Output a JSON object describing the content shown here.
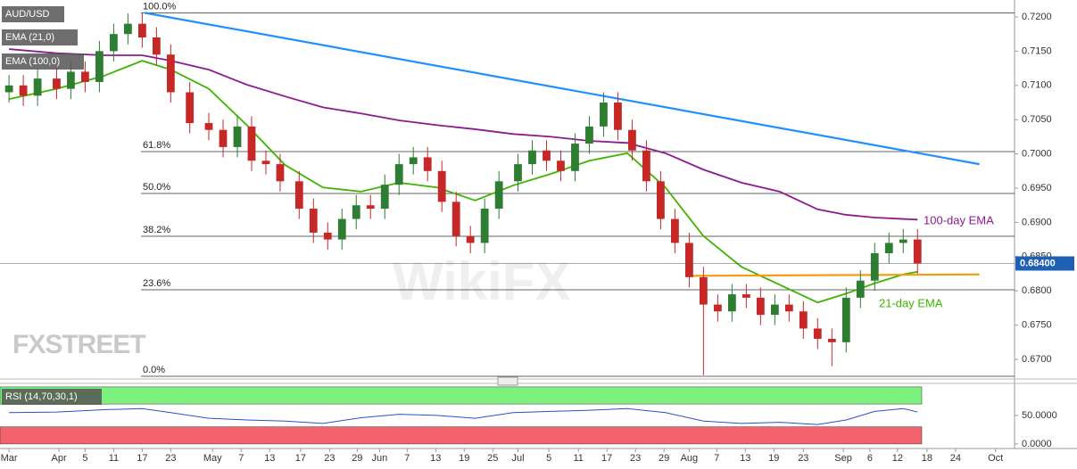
{
  "chart_data": {
    "type": "candlestick",
    "title": "AUD/USD",
    "legend": [
      "EMA (21,0)",
      "EMA (100,0)"
    ],
    "watermarks": [
      "FXSTREET",
      "WikiFX"
    ],
    "xlim": [
      -1.9,
      211.4
    ],
    "xticks": [
      {
        "value": 0,
        "label": "Mar"
      },
      {
        "value": 10.5,
        "label": "Apr"
      },
      {
        "value": 16,
        "label": "5"
      },
      {
        "value": 22,
        "label": "11"
      },
      {
        "value": 28,
        "label": "17"
      },
      {
        "value": 34,
        "label": "23"
      },
      {
        "value": 42.8,
        "label": "May"
      },
      {
        "value": 48.8,
        "label": "7"
      },
      {
        "value": 54.8,
        "label": "13"
      },
      {
        "value": 61.3,
        "label": "17"
      },
      {
        "value": 67.4,
        "label": "23"
      },
      {
        "value": 73.2,
        "label": "29"
      },
      {
        "value": 77.9,
        "label": "Jun"
      },
      {
        "value": 83.7,
        "label": "7"
      },
      {
        "value": 89.7,
        "label": "13"
      },
      {
        "value": 95.7,
        "label": "19"
      },
      {
        "value": 101.7,
        "label": "25"
      },
      {
        "value": 107,
        "label": "Jul"
      },
      {
        "value": 113.5,
        "label": "5"
      },
      {
        "value": 119.7,
        "label": "11"
      },
      {
        "value": 125.7,
        "label": "17"
      },
      {
        "value": 131.7,
        "label": "23"
      },
      {
        "value": 137.7,
        "label": "29"
      },
      {
        "value": 143,
        "label": "Aug"
      },
      {
        "value": 148.8,
        "label": "7"
      },
      {
        "value": 154.8,
        "label": "13"
      },
      {
        "value": 160.8,
        "label": "19"
      },
      {
        "value": 167,
        "label": "23"
      },
      {
        "value": 175.4,
        "label": "Sep"
      },
      {
        "value": 181,
        "label": "6"
      },
      {
        "value": 186.8,
        "label": "12"
      },
      {
        "value": 193,
        "label": "18"
      },
      {
        "value": 199,
        "label": "24"
      },
      {
        "value": 207.4,
        "label": "Oct"
      }
    ],
    "ylim": [
      0.66753,
      0.72247
    ],
    "yticks": [
      {
        "value": 0.67,
        "label": "0.6700"
      },
      {
        "value": 0.675,
        "label": "0.6750"
      },
      {
        "value": 0.68,
        "label": "0.6800"
      },
      {
        "value": 0.685,
        "label": "0.6850"
      },
      {
        "value": 0.69,
        "label": "0.6900"
      },
      {
        "value": 0.695,
        "label": "0.6950"
      },
      {
        "value": 0.7,
        "label": "0.7000"
      },
      {
        "value": 0.705,
        "label": "0.7050"
      },
      {
        "value": 0.71,
        "label": "0.7100"
      },
      {
        "value": 0.715,
        "label": "0.7150"
      },
      {
        "value": 0.72,
        "label": "0.7200"
      }
    ],
    "up_color": "#2e7d32",
    "down_color": "#c62828",
    "candles": {
      "x": [
        0,
        3,
        6,
        10,
        13,
        16,
        19,
        22,
        25,
        28,
        31,
        34,
        38,
        42,
        45,
        48,
        51,
        54,
        57,
        61,
        64,
        67,
        70,
        73,
        76,
        79,
        82,
        85,
        88,
        91,
        94,
        97,
        100,
        103,
        107,
        110,
        113,
        116,
        119,
        122,
        125,
        128,
        131,
        134,
        137,
        140,
        143,
        146,
        149,
        152,
        155,
        158,
        161,
        164,
        167,
        170,
        173,
        176,
        179,
        182,
        185,
        188,
        191
      ],
      "open": [
        0.709,
        0.71,
        0.7085,
        0.711,
        0.7095,
        0.712,
        0.7105,
        0.715,
        0.7175,
        0.719,
        0.717,
        0.7145,
        0.709,
        0.7045,
        0.7035,
        0.701,
        0.704,
        0.699,
        0.6985,
        0.696,
        0.692,
        0.6885,
        0.6875,
        0.6905,
        0.6925,
        0.692,
        0.6955,
        0.6985,
        0.6995,
        0.6975,
        0.693,
        0.688,
        0.687,
        0.692,
        0.696,
        0.6985,
        0.7005,
        0.699,
        0.6975,
        0.7015,
        0.704,
        0.7075,
        0.7035,
        0.7005,
        0.696,
        0.6905,
        0.687,
        0.682,
        0.678,
        0.677,
        0.6795,
        0.679,
        0.6765,
        0.678,
        0.677,
        0.6745,
        0.673,
        0.6725,
        0.679,
        0.6815,
        0.6855,
        0.687,
        0.6875
      ],
      "high": [
        0.7115,
        0.7115,
        0.7125,
        0.7125,
        0.7135,
        0.7135,
        0.7165,
        0.719,
        0.7205,
        0.7206,
        0.7185,
        0.716,
        0.7105,
        0.706,
        0.705,
        0.7055,
        0.7055,
        0.7005,
        0.7,
        0.6975,
        0.6935,
        0.69,
        0.692,
        0.694,
        0.694,
        0.697,
        0.7,
        0.701,
        0.701,
        0.699,
        0.6945,
        0.6895,
        0.6935,
        0.6975,
        0.7,
        0.702,
        0.702,
        0.7005,
        0.703,
        0.7055,
        0.709,
        0.709,
        0.705,
        0.702,
        0.6975,
        0.692,
        0.6885,
        0.6835,
        0.6795,
        0.681,
        0.681,
        0.6805,
        0.6795,
        0.6795,
        0.6785,
        0.676,
        0.6745,
        0.6805,
        0.683,
        0.687,
        0.6885,
        0.689,
        0.689
      ],
      "low": [
        0.7075,
        0.707,
        0.707,
        0.708,
        0.708,
        0.709,
        0.709,
        0.7135,
        0.716,
        0.7155,
        0.713,
        0.7075,
        0.703,
        0.702,
        0.6995,
        0.6995,
        0.6975,
        0.697,
        0.6945,
        0.6905,
        0.687,
        0.686,
        0.686,
        0.689,
        0.6905,
        0.6905,
        0.694,
        0.697,
        0.696,
        0.6915,
        0.6865,
        0.6855,
        0.6855,
        0.6905,
        0.6945,
        0.697,
        0.6975,
        0.696,
        0.696,
        0.7,
        0.7025,
        0.702,
        0.699,
        0.6945,
        0.689,
        0.6855,
        0.6805,
        0.6677,
        0.6755,
        0.6755,
        0.6775,
        0.675,
        0.675,
        0.6755,
        0.673,
        0.6715,
        0.669,
        0.671,
        0.6775,
        0.68,
        0.684,
        0.6855,
        0.6825
      ],
      "close": [
        0.71,
        0.7085,
        0.711,
        0.7095,
        0.712,
        0.7105,
        0.715,
        0.7175,
        0.719,
        0.717,
        0.7145,
        0.709,
        0.7045,
        0.7035,
        0.701,
        0.704,
        0.699,
        0.6985,
        0.696,
        0.692,
        0.6885,
        0.6875,
        0.6905,
        0.6925,
        0.692,
        0.6955,
        0.6985,
        0.6995,
        0.6975,
        0.693,
        0.688,
        0.687,
        0.692,
        0.696,
        0.6985,
        0.7005,
        0.699,
        0.6975,
        0.7015,
        0.704,
        0.7075,
        0.7035,
        0.7005,
        0.696,
        0.6905,
        0.687,
        0.682,
        0.678,
        0.677,
        0.6795,
        0.679,
        0.6765,
        0.678,
        0.677,
        0.6745,
        0.673,
        0.6725,
        0.679,
        0.6815,
        0.6855,
        0.687,
        0.6875,
        0.684
      ]
    },
    "last_price": {
      "value": 0.684,
      "label": "0.68400"
    },
    "series": [
      {
        "name": "21-day EMA",
        "color": "#3cb500",
        "x": [
          0,
          10,
          20,
          28,
          34,
          42,
          50,
          58,
          66,
          74,
          82,
          90,
          98,
          106,
          114,
          122,
          130,
          138,
          146,
          154,
          162,
          170,
          176,
          182,
          188,
          191
        ],
        "values": [
          0.708,
          0.7095,
          0.7114,
          0.7136,
          0.7123,
          0.7095,
          0.7042,
          0.6984,
          0.6951,
          0.6945,
          0.6958,
          0.6951,
          0.6932,
          0.6954,
          0.6971,
          0.699,
          0.7001,
          0.6951,
          0.688,
          0.6835,
          0.6809,
          0.6783,
          0.6796,
          0.6811,
          0.6824,
          0.6828
        ]
      },
      {
        "name": "100-day EMA",
        "color": "#8e1a8e",
        "x": [
          0,
          10,
          20,
          28,
          34,
          42,
          50,
          58,
          66,
          74,
          82,
          90,
          98,
          106,
          114,
          122,
          130,
          138,
          146,
          154,
          162,
          170,
          176,
          182,
          188,
          191
        ],
        "values": [
          0.7153,
          0.7147,
          0.7144,
          0.7144,
          0.7136,
          0.7123,
          0.7101,
          0.7084,
          0.7068,
          0.7059,
          0.7049,
          0.7042,
          0.7036,
          0.7029,
          0.7025,
          0.7019,
          0.7016,
          0.7001,
          0.6977,
          0.6958,
          0.6945,
          0.6919,
          0.6911,
          0.6907,
          0.6905,
          0.6904
        ]
      }
    ],
    "trend_lines": [
      {
        "color": "#1e90ff",
        "x": [
          28.5,
          204
        ],
        "values": [
          0.7206,
          0.6985
        ]
      },
      {
        "color": "#f39c12",
        "x": [
          143.5,
          204
        ],
        "values": [
          0.6822,
          0.6824
        ]
      }
    ],
    "fib_levels": [
      {
        "label": "100.0%",
        "value": 0.7206
      },
      {
        "label": "61.8%",
        "value": 0.70034
      },
      {
        "label": "50.0%",
        "value": 0.69422
      },
      {
        "label": "38.2%",
        "value": 0.68797
      },
      {
        "label": "23.6%",
        "value": 0.68016
      },
      {
        "label": "0.0%",
        "value": 0.66753
      }
    ],
    "rsi": {
      "title": "RSI (14,70,30,1)",
      "color": "#2b4fc9",
      "ylim": [
        -8,
        103
      ],
      "yticks": [
        {
          "value": 50,
          "label": "50.0000"
        },
        {
          "value": 0,
          "label": "0.0000"
        }
      ],
      "overbought": [
        70,
        100
      ],
      "oversold": [
        0,
        30
      ],
      "x": [
        0,
        10,
        20,
        28,
        34,
        42,
        50,
        58,
        66,
        74,
        82,
        90,
        98,
        106,
        114,
        122,
        130,
        138,
        146,
        154,
        162,
        170,
        176,
        182,
        188,
        191
      ],
      "values": [
        55,
        56,
        60,
        62,
        55,
        45,
        42,
        40,
        36,
        46,
        52,
        50,
        45,
        55,
        57,
        59,
        62,
        55,
        40,
        36,
        38,
        34,
        42,
        57,
        62,
        56
      ]
    }
  }
}
